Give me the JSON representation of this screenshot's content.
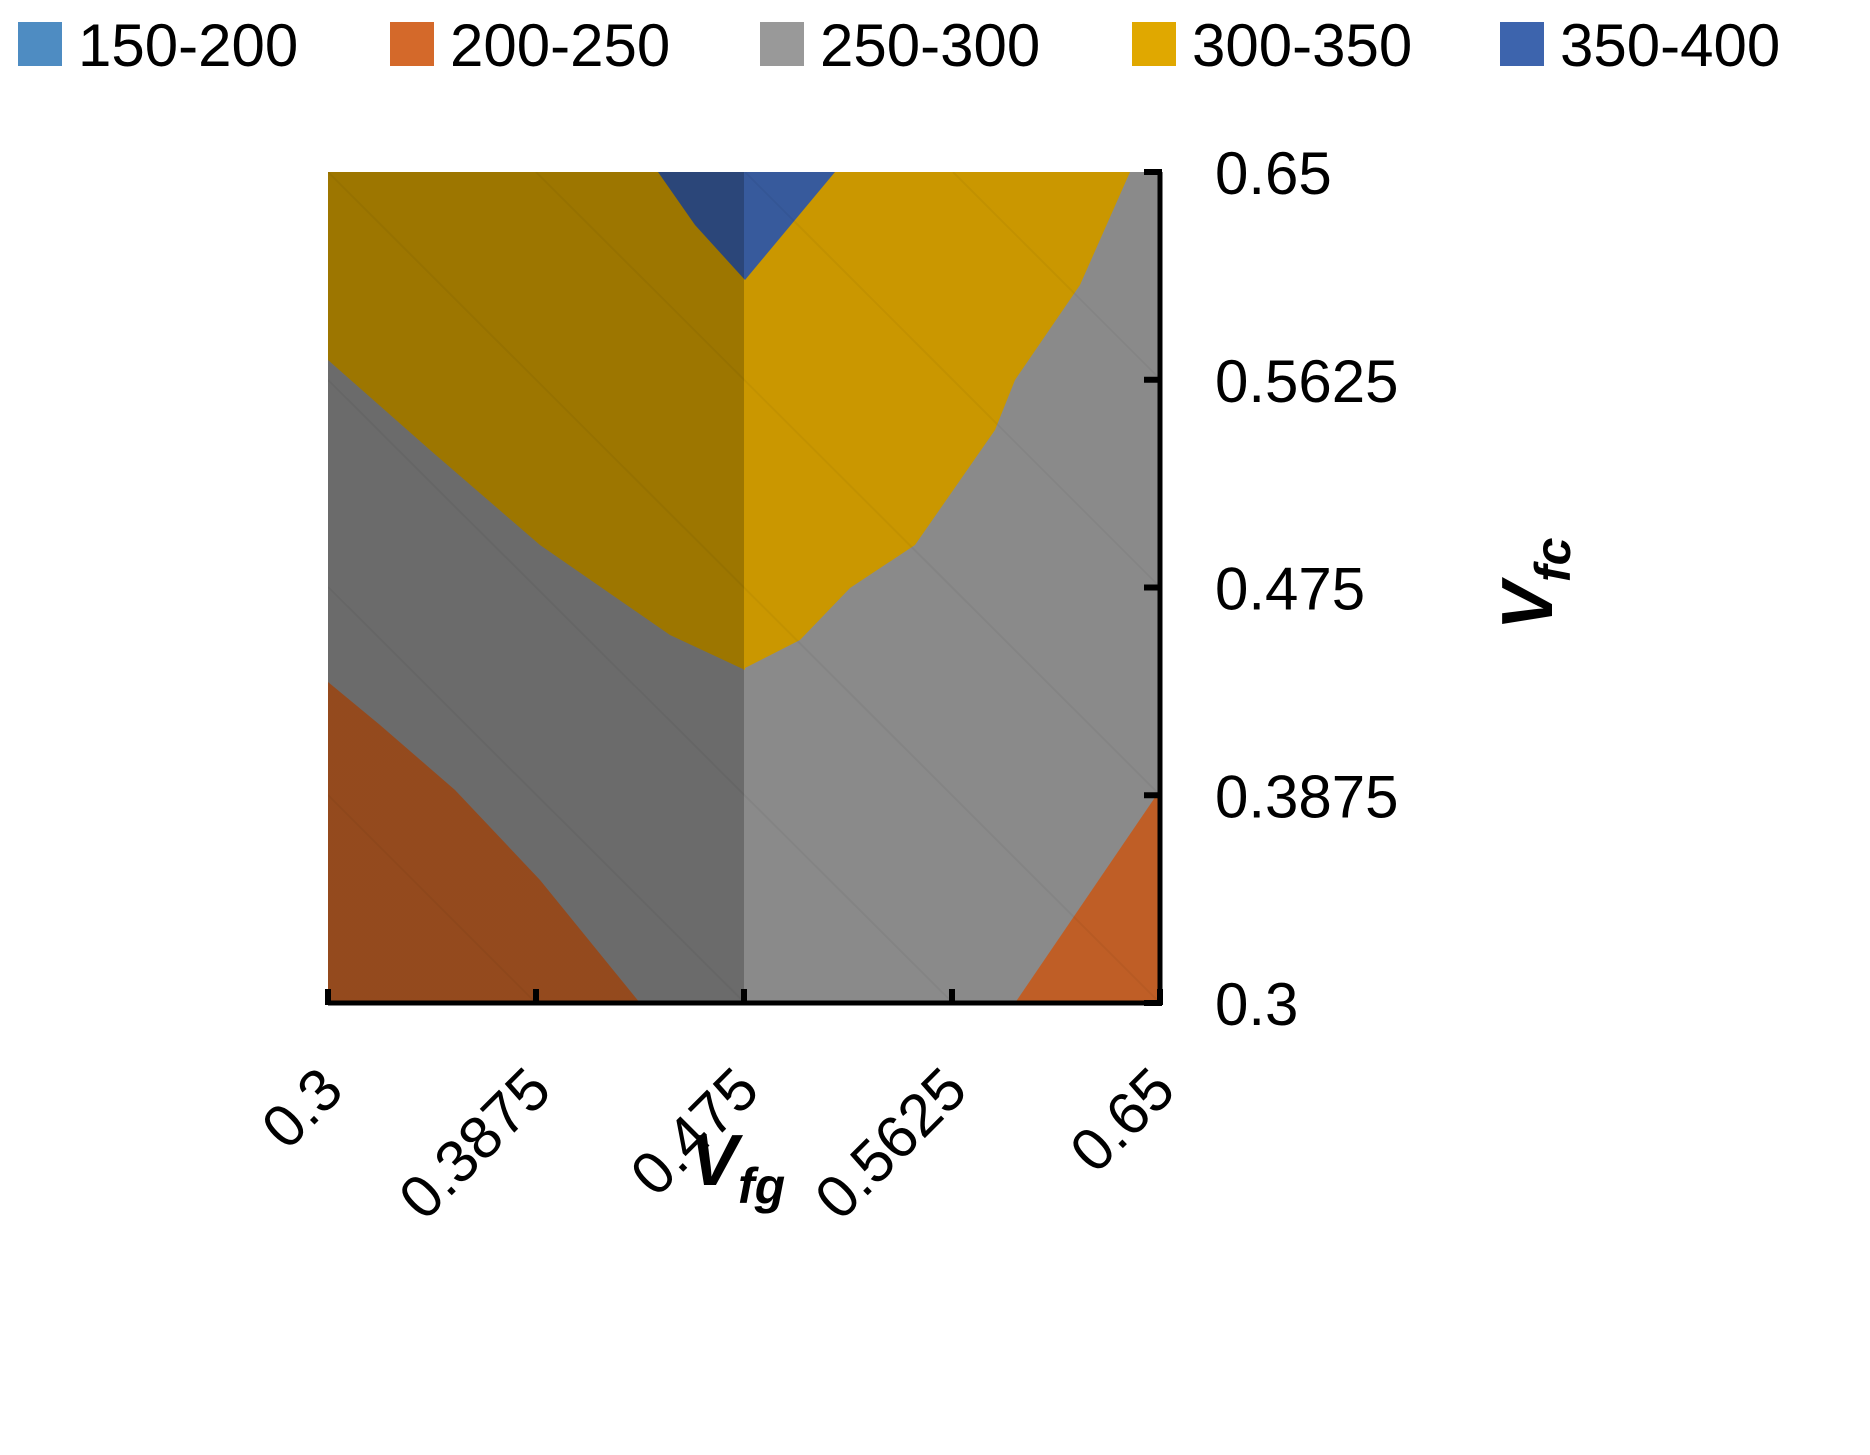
{
  "chart_data": {
    "type": "surface-contour",
    "legend": [
      {
        "label": "150-200",
        "color": "#4e8cc2"
      },
      {
        "label": "200-250",
        "color": "#d4692a"
      },
      {
        "label": "250-300",
        "color": "#999999"
      },
      {
        "label": "300-350",
        "color": "#e0a800"
      },
      {
        "label": "350-400",
        "color": "#3d64ad"
      }
    ],
    "x_axis": {
      "label_main": "V",
      "label_sub": "fg",
      "ticks": [
        "0.3",
        "0.3875",
        "0.475",
        "0.5625",
        "0.65"
      ],
      "range": [
        0.3,
        0.65
      ]
    },
    "y_axis": {
      "label_main": "V",
      "label_sub": "fc",
      "ticks": [
        "0.3",
        "0.3875",
        "0.475",
        "0.5625",
        "0.65"
      ],
      "range": [
        0.3,
        0.65
      ]
    },
    "x": [
      0.3,
      0.3875,
      0.475,
      0.5625,
      0.65
    ],
    "y": [
      0.3,
      0.3875,
      0.475,
      0.5625,
      0.65
    ],
    "z": [
      [
        220,
        240,
        260,
        245,
        215
      ],
      [
        245,
        260,
        275,
        265,
        235
      ],
      [
        275,
        290,
        300,
        280,
        260
      ],
      [
        295,
        315,
        330,
        320,
        275
      ],
      [
        320,
        340,
        355,
        335,
        300
      ]
    ],
    "bands": [
      {
        "range": [
          200,
          250
        ],
        "color": "#d4692a"
      },
      {
        "range": [
          250,
          300
        ],
        "color": "#999999"
      },
      {
        "range": [
          300,
          350
        ],
        "color": "#e0a800"
      },
      {
        "range": [
          350,
          400
        ],
        "color": "#3d64ad"
      }
    ]
  }
}
